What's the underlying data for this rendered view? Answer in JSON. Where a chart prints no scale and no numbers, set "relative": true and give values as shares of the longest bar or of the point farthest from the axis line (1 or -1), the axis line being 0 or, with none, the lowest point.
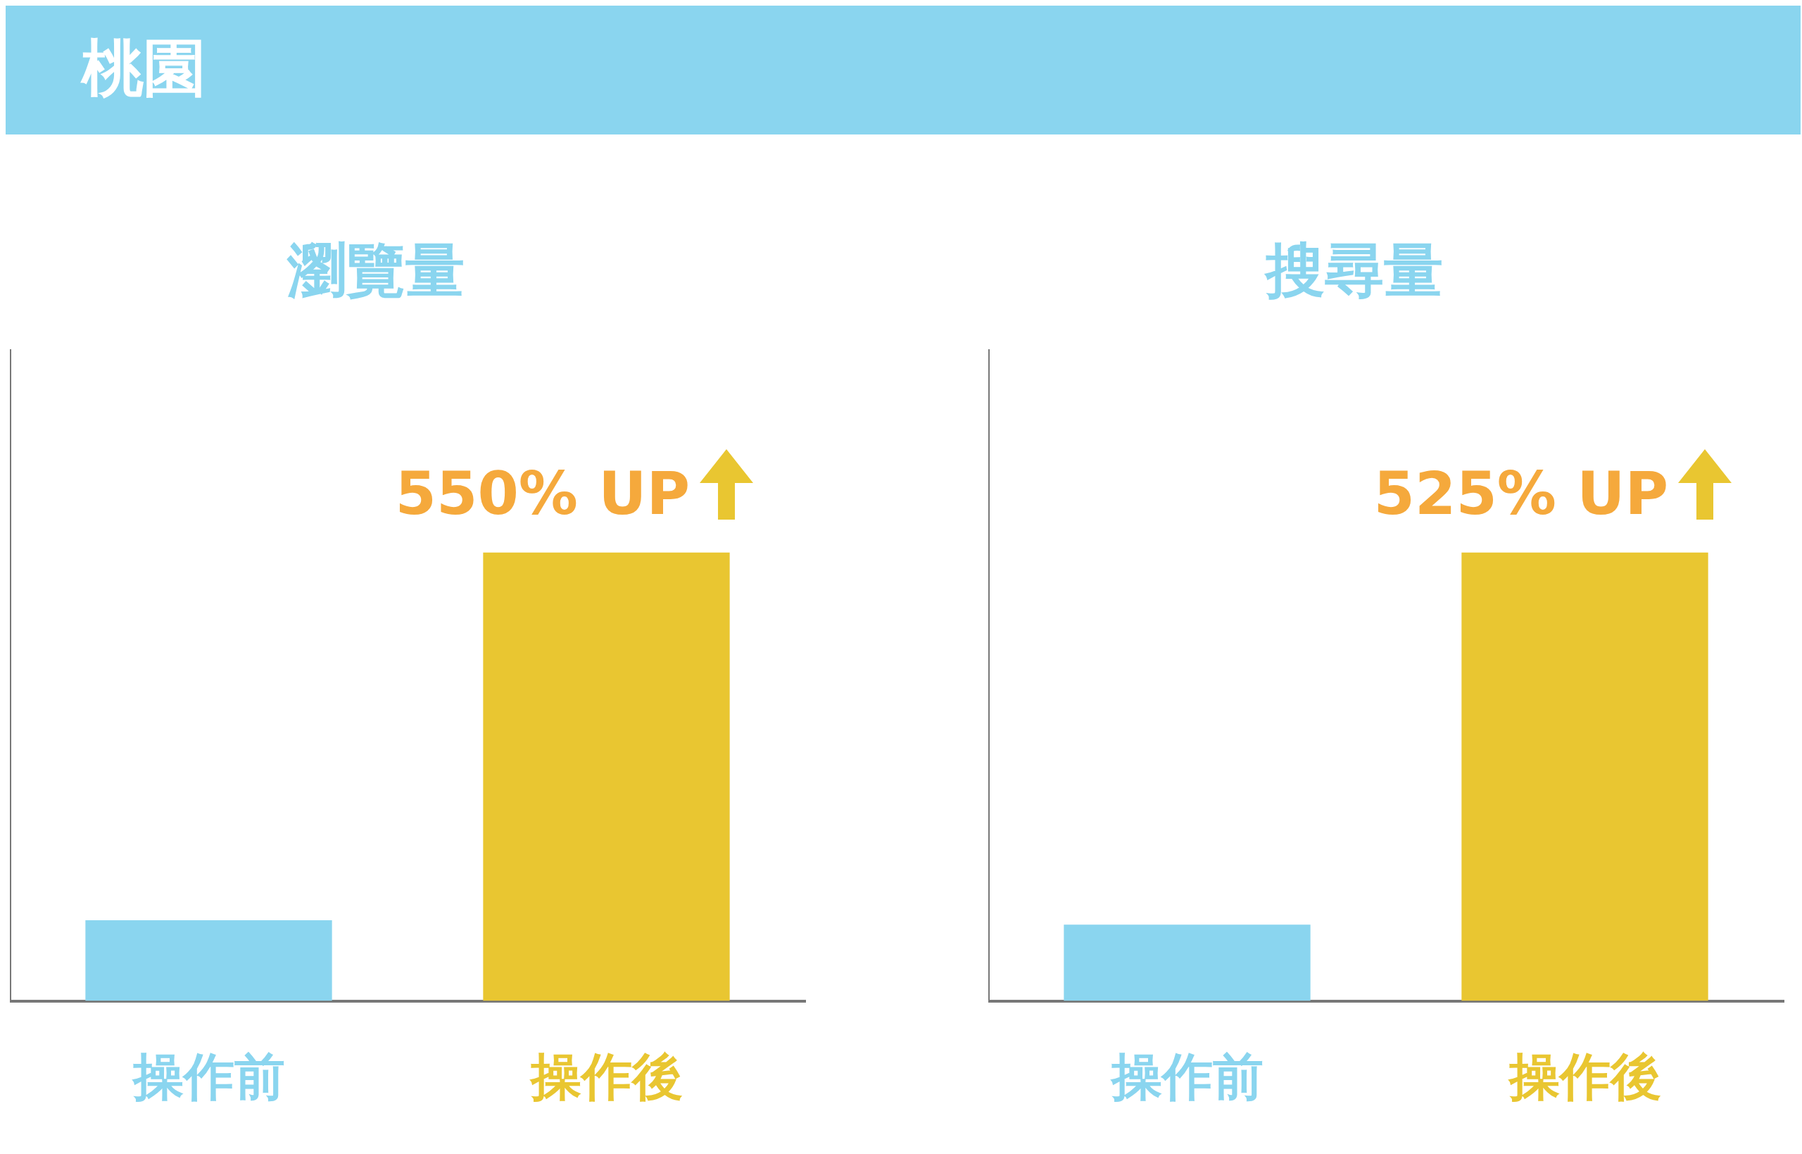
{
  "chart_data": [
    {
      "type": "other",
      "title": "桃園"
    },
    {
      "type": "bar",
      "title": "瀏覽量",
      "categories": [
        "操作前",
        "操作後"
      ],
      "values": [
        0.18,
        1
      ],
      "colors": [
        "#8ad5ef",
        "#e9c631"
      ],
      "relative": true,
      "annotations": [
        "550% UP"
      ]
    },
    {
      "type": "bar",
      "title": "搜尋量",
      "categories": [
        "操作前",
        "操作後"
      ],
      "values": [
        0.17,
        1
      ],
      "colors": [
        "#8ad5ef",
        "#e9c631"
      ],
      "relative": true,
      "annotations": [
        "525% UP"
      ]
    }
  ]
}
